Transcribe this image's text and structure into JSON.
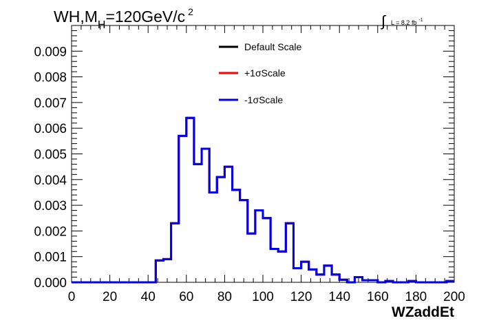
{
  "chart_data": {
    "type": "line",
    "title": {
      "prefix": "WH,M",
      "subscript": "H",
      "value": "=120GeV/c",
      "superscript": "2"
    },
    "annotation": {
      "integral_symbol": "∫",
      "text": "L = 8.2 fb",
      "superscript": "-1"
    },
    "xlabel": "WZaddEt",
    "ylabel": "",
    "xlim": [
      0,
      200
    ],
    "ylim": [
      0,
      0.01
    ],
    "x_ticks": [
      "0",
      "20",
      "40",
      "60",
      "80",
      "100",
      "120",
      "140",
      "160",
      "180",
      "200"
    ],
    "y_ticks": [
      "0.000",
      "0.001",
      "0.002",
      "0.003",
      "0.004",
      "0.005",
      "0.006",
      "0.007",
      "0.008",
      "0.009"
    ],
    "legend_placement": "top-center",
    "bin_width": 4,
    "bin_edges_start": 0,
    "series": [
      {
        "name": "Default Scale",
        "color": "#000000",
        "values": [
          0,
          0,
          0,
          0,
          0,
          0,
          0,
          0,
          0,
          0,
          0,
          0.00085,
          0.0009,
          0.0023,
          0.0057,
          0.0064,
          0.0046,
          0.0052,
          0.0035,
          0.0041,
          0.0045,
          0.0036,
          0.0032,
          0.0019,
          0.0028,
          0.0025,
          0.0013,
          0.0012,
          0.0023,
          0.00055,
          0.0008,
          0.0005,
          0.0003,
          0.00065,
          0.0003,
          0.0001,
          0,
          0.0002,
          8e-05,
          8e-05,
          0,
          5e-05,
          0,
          0,
          5e-05,
          0,
          0,
          0,
          0,
          5e-05
        ]
      },
      {
        "name": "+1σScale",
        "color": "#ff0000",
        "values": [
          0,
          0,
          0,
          0,
          0,
          0,
          0,
          0,
          0,
          0,
          0,
          0.00085,
          0.0009,
          0.0023,
          0.0057,
          0.0064,
          0.0046,
          0.0052,
          0.0035,
          0.0041,
          0.0045,
          0.0036,
          0.0032,
          0.0019,
          0.0028,
          0.0025,
          0.0013,
          0.0012,
          0.0023,
          0.00055,
          0.0008,
          0.0005,
          0.0003,
          0.00065,
          0.0003,
          0.0001,
          0,
          0.0002,
          8e-05,
          8e-05,
          0,
          5e-05,
          0,
          0,
          5e-05,
          0,
          0,
          0,
          0,
          5e-05
        ]
      },
      {
        "name": "-1σScale",
        "color": "#0000ee",
        "values": [
          0,
          0,
          0,
          0,
          0,
          0,
          0,
          0,
          0,
          0,
          0,
          0.00085,
          0.0009,
          0.0023,
          0.0057,
          0.0064,
          0.0046,
          0.0052,
          0.0035,
          0.0041,
          0.0045,
          0.0036,
          0.0032,
          0.0019,
          0.0028,
          0.0025,
          0.0013,
          0.0012,
          0.0023,
          0.00055,
          0.0008,
          0.0005,
          0.0003,
          0.00065,
          0.0003,
          0.0001,
          0,
          0.0002,
          8e-05,
          8e-05,
          0,
          5e-05,
          0,
          0,
          5e-05,
          0,
          0,
          0,
          0,
          5e-05
        ]
      }
    ]
  }
}
